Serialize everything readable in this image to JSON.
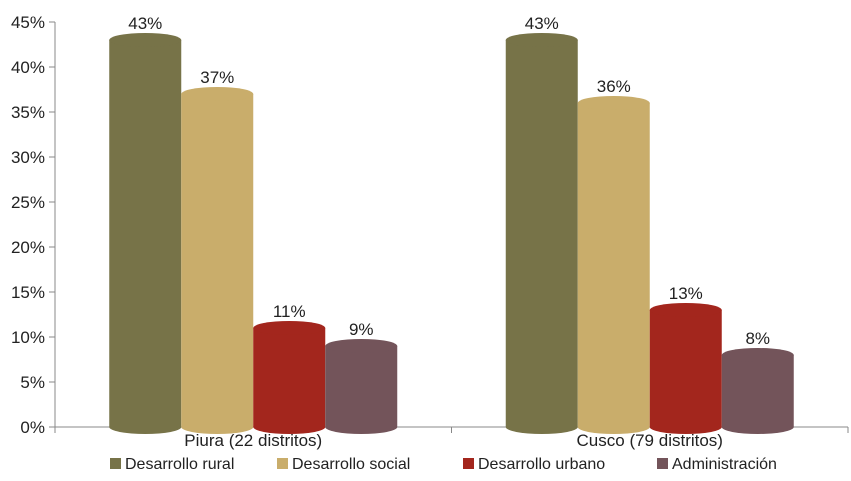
{
  "chart_data": {
    "type": "bar",
    "categories": [
      "Piura (22 distritos)",
      "Cusco (79 distritos)"
    ],
    "series": [
      {
        "name": "Desarrollo rural",
        "values": [
          43,
          43
        ],
        "labels": [
          "43%",
          "43%"
        ],
        "color": "#777348"
      },
      {
        "name": "Desarrollo social",
        "values": [
          37,
          36
        ],
        "labels": [
          "37%",
          "36%"
        ],
        "color": "#C9AD6B"
      },
      {
        "name": "Desarrollo urbano",
        "values": [
          11,
          13
        ],
        "labels": [
          "11%",
          "13%"
        ],
        "color": "#A3261D"
      },
      {
        "name": "Administración",
        "values": [
          9,
          8
        ],
        "labels": [
          "9%",
          "8%"
        ],
        "color": "#73545A"
      }
    ],
    "ylim": [
      0,
      45
    ],
    "yticks": [
      0,
      5,
      10,
      15,
      20,
      25,
      30,
      35,
      40,
      45
    ],
    "ytick_labels": [
      "0%",
      "5%",
      "10%",
      "15%",
      "20%",
      "25%",
      "30%",
      "35%",
      "40%",
      "45%"
    ],
    "grid": false,
    "legend": "bottom"
  }
}
